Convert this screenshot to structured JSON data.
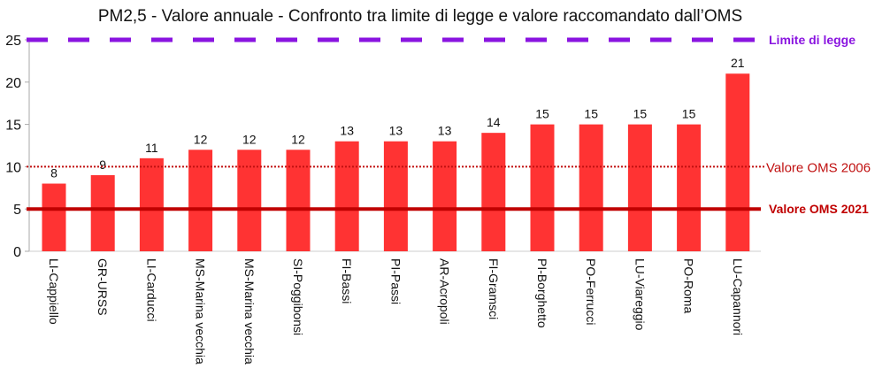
{
  "chart_data": {
    "type": "bar",
    "title": "PM2,5 - Valore annuale - Confronto tra limite di legge e valore raccomandato dall’OMS",
    "xlabel": "",
    "ylabel": "",
    "ylim": [
      0,
      25
    ],
    "yticks": [
      0,
      5,
      10,
      15,
      20,
      25
    ],
    "categories": [
      "LI-Cappiello",
      "GR-URSS",
      "LI-Carducci",
      "MS-Marina vecchia",
      "MS-Marina vecchia",
      "SI-Poggibonsi",
      "FI-Bassi",
      "PI-Passi",
      "AR-Acropoli",
      "FI-Gramsci",
      "PI-Borghetto",
      "PO-Ferrucci",
      "LU-Viareggio",
      "PO-Roma",
      "LU-Capannori"
    ],
    "values": [
      8,
      9,
      11,
      12,
      12,
      12,
      13,
      13,
      13,
      14,
      15,
      15,
      15,
      15,
      21
    ],
    "bar_color": "#ff3333",
    "reference_lines": [
      {
        "label": "Limite di legge",
        "value": 25,
        "color": "#8a14e0",
        "style": "dashed"
      },
      {
        "label": "Valore OMS 2006",
        "value": 10,
        "color": "#c01010",
        "style": "dotted"
      },
      {
        "label": "Valore OMS 2021",
        "value": 5,
        "color": "#c00000",
        "style": "solid"
      }
    ]
  }
}
